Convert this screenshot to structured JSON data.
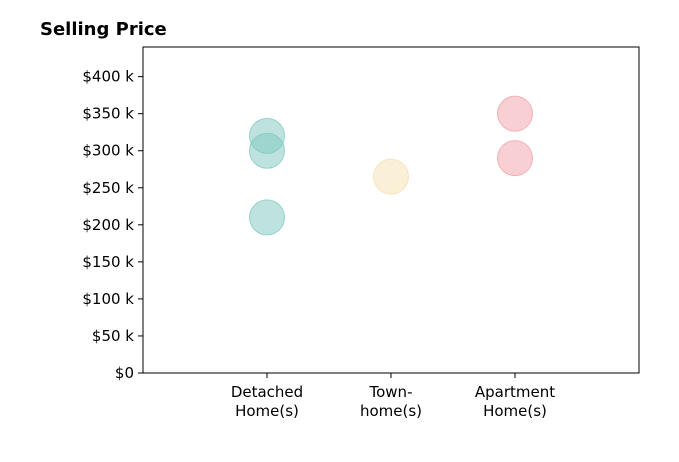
{
  "chart_data": {
    "type": "scatter",
    "title": "Selling Price",
    "xlabel": "",
    "ylabel": "",
    "categories": [
      [
        "Detached",
        "Home(s)"
      ],
      [
        "Town-",
        "home(s)"
      ],
      [
        "Apartment",
        "Home(s)"
      ]
    ],
    "category_colors": [
      "#7ec8bf",
      "#f5dfb0",
      "#f2a0a8"
    ],
    "points": [
      {
        "category": 0,
        "y": 320000
      },
      {
        "category": 0,
        "y": 300000
      },
      {
        "category": 0,
        "y": 210000
      },
      {
        "category": 1,
        "y": 265000
      },
      {
        "category": 2,
        "y": 350000
      },
      {
        "category": 2,
        "y": 290000
      }
    ],
    "ylim": [
      0,
      440000
    ],
    "xlim": [
      -1,
      3
    ],
    "yticks": [
      0,
      50000,
      100000,
      150000,
      200000,
      250000,
      300000,
      350000,
      400000
    ],
    "ytick_labels": [
      "$0",
      "$50 k",
      "$100 k",
      "$150 k",
      "$200 k",
      "$250 k",
      "$300 k",
      "$350 k",
      "$400 k"
    ],
    "grid": false,
    "legend": "none"
  }
}
